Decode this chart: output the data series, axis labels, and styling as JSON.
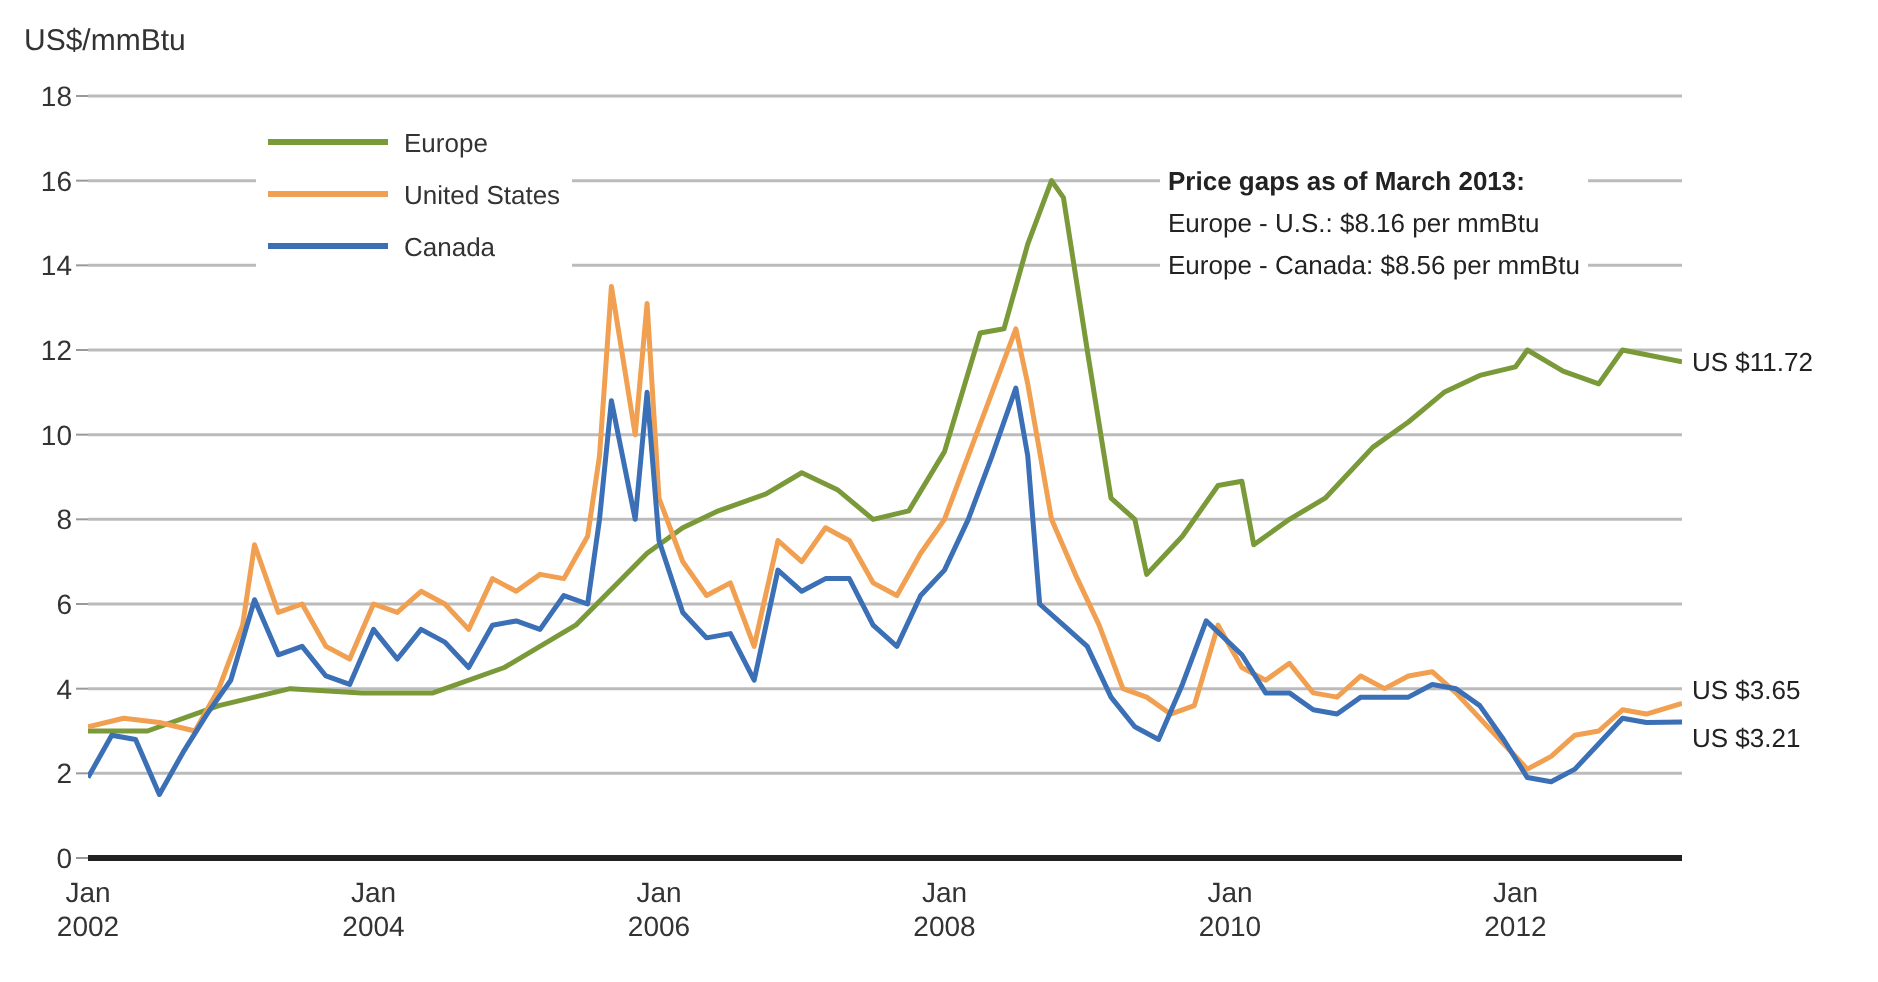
{
  "chart_data": {
    "type": "line",
    "ylabel": "US$/mmBtu",
    "xlim": [
      "2002-01",
      "2013-03"
    ],
    "xticks": [
      {
        "value": "2002-01",
        "label": "Jan\n2002"
      },
      {
        "value": "2004-01",
        "label": "Jan\n2004"
      },
      {
        "value": "2006-01",
        "label": "Jan\n2006"
      },
      {
        "value": "2008-01",
        "label": "Jan\n2008"
      },
      {
        "value": "2010-01",
        "label": "Jan\n2010"
      },
      {
        "value": "2012-01",
        "label": "Jan\n2012"
      }
    ],
    "ylim": [
      0,
      18
    ],
    "yticks": [
      0,
      2,
      4,
      6,
      8,
      10,
      12,
      14,
      16,
      18
    ],
    "grid": "y",
    "legend": "top left",
    "series": [
      {
        "name": "Europe",
        "color": "#7a9a3a",
        "x": [
          "2002-01",
          "2002-06",
          "2002-12",
          "2003-06",
          "2003-12",
          "2004-06",
          "2004-12",
          "2005-06",
          "2005-12",
          "2006-03",
          "2006-06",
          "2006-10",
          "2007-01",
          "2007-04",
          "2007-07",
          "2007-10",
          "2008-01",
          "2008-04",
          "2008-06",
          "2008-08",
          "2008-10",
          "2008-11",
          "2009-01",
          "2009-03",
          "2009-05",
          "2009-06",
          "2009-09",
          "2009-12",
          "2010-02",
          "2010-03",
          "2010-06",
          "2010-09",
          "2011-01",
          "2011-04",
          "2011-07",
          "2011-10",
          "2012-01",
          "2012-02",
          "2012-05",
          "2012-08",
          "2012-10",
          "2013-03"
        ],
        "values": [
          3.0,
          3.0,
          3.6,
          4.0,
          3.9,
          3.9,
          4.5,
          5.5,
          7.2,
          7.8,
          8.2,
          8.6,
          9.1,
          8.7,
          8.0,
          8.2,
          9.6,
          12.4,
          12.5,
          14.5,
          16.0,
          15.6,
          12.0,
          8.5,
          8.0,
          6.7,
          7.6,
          8.8,
          8.9,
          7.4,
          8.0,
          8.5,
          9.7,
          10.3,
          11.0,
          11.4,
          11.6,
          12.0,
          11.5,
          11.2,
          12.0,
          11.72
        ]
      },
      {
        "name": "United States",
        "color": "#f0a050",
        "x": [
          "2002-01",
          "2002-04",
          "2002-07",
          "2002-10",
          "2002-12",
          "2003-02",
          "2003-03",
          "2003-05",
          "2003-07",
          "2003-09",
          "2003-11",
          "2004-01",
          "2004-03",
          "2004-05",
          "2004-07",
          "2004-09",
          "2004-11",
          "2005-01",
          "2005-03",
          "2005-05",
          "2005-07",
          "2005-08",
          "2005-09",
          "2005-11",
          "2005-12",
          "2006-01",
          "2006-03",
          "2006-05",
          "2006-07",
          "2006-09",
          "2006-11",
          "2007-01",
          "2007-03",
          "2007-05",
          "2007-07",
          "2007-09",
          "2007-11",
          "2008-01",
          "2008-03",
          "2008-05",
          "2008-07",
          "2008-08",
          "2008-10",
          "2008-12",
          "2009-02",
          "2009-04",
          "2009-06",
          "2009-08",
          "2009-10",
          "2009-12",
          "2010-02",
          "2010-04",
          "2010-06",
          "2010-08",
          "2010-10",
          "2010-12",
          "2011-02",
          "2011-04",
          "2011-06",
          "2011-08",
          "2011-10",
          "2011-12",
          "2012-02",
          "2012-04",
          "2012-06",
          "2012-08",
          "2012-10",
          "2012-12",
          "2013-03"
        ],
        "values": [
          3.1,
          3.3,
          3.2,
          3.0,
          4.0,
          5.5,
          7.4,
          5.8,
          6.0,
          5.0,
          4.7,
          6.0,
          5.8,
          6.3,
          6.0,
          5.4,
          6.6,
          6.3,
          6.7,
          6.6,
          7.6,
          9.5,
          13.5,
          10.0,
          13.1,
          8.5,
          7.0,
          6.2,
          6.5,
          5.0,
          7.5,
          7.0,
          7.8,
          7.5,
          6.5,
          6.2,
          7.2,
          8.0,
          9.5,
          11.0,
          12.5,
          11.2,
          8.0,
          6.7,
          5.5,
          4.0,
          3.8,
          3.4,
          3.6,
          5.5,
          4.5,
          4.2,
          4.6,
          3.9,
          3.8,
          4.3,
          4.0,
          4.3,
          4.4,
          3.9,
          3.3,
          2.7,
          2.1,
          2.4,
          2.9,
          3.0,
          3.5,
          3.4,
          3.65
        ]
      },
      {
        "name": "Canada",
        "color": "#3b6fb6",
        "x": [
          "2002-01",
          "2002-03",
          "2002-05",
          "2002-07",
          "2002-09",
          "2002-11",
          "2003-01",
          "2003-03",
          "2003-05",
          "2003-07",
          "2003-09",
          "2003-11",
          "2004-01",
          "2004-03",
          "2004-05",
          "2004-07",
          "2004-09",
          "2004-11",
          "2005-01",
          "2005-03",
          "2005-05",
          "2005-07",
          "2005-08",
          "2005-09",
          "2005-11",
          "2005-12",
          "2006-01",
          "2006-03",
          "2006-05",
          "2006-07",
          "2006-09",
          "2006-11",
          "2007-01",
          "2007-03",
          "2007-05",
          "2007-07",
          "2007-09",
          "2007-11",
          "2008-01",
          "2008-03",
          "2008-05",
          "2008-07",
          "2008-08",
          "2008-09",
          "2008-11",
          "2009-01",
          "2009-03",
          "2009-05",
          "2009-07",
          "2009-09",
          "2009-11",
          "2010-02",
          "2010-04",
          "2010-06",
          "2010-08",
          "2010-10",
          "2010-12",
          "2011-02",
          "2011-04",
          "2011-06",
          "2011-08",
          "2011-10",
          "2011-12",
          "2012-02",
          "2012-04",
          "2012-06",
          "2012-08",
          "2012-10",
          "2012-12",
          "2013-03"
        ],
        "values": [
          1.9,
          2.9,
          2.8,
          1.5,
          2.5,
          3.4,
          4.2,
          6.1,
          4.8,
          5.0,
          4.3,
          4.1,
          5.4,
          4.7,
          5.4,
          5.1,
          4.5,
          5.5,
          5.6,
          5.4,
          6.2,
          6.0,
          8.0,
          10.8,
          8.0,
          11.0,
          7.5,
          5.8,
          5.2,
          5.3,
          4.2,
          6.8,
          6.3,
          6.6,
          6.6,
          5.5,
          5.0,
          6.2,
          6.8,
          8.0,
          9.5,
          11.1,
          9.5,
          6.0,
          5.5,
          5.0,
          3.8,
          3.1,
          2.8,
          4.1,
          5.6,
          4.8,
          3.9,
          3.9,
          3.5,
          3.4,
          3.8,
          3.8,
          3.8,
          4.1,
          4.0,
          3.6,
          2.8,
          1.9,
          1.8,
          2.1,
          2.7,
          3.3,
          3.2,
          3.21
        ]
      }
    ],
    "annotations": [
      "Price gaps as of March 2013:\nEurope - U.S.: $8.16 per mmBtu\nEurope - Canada: $8.56 per mmBtu",
      {
        "text": "US $11.72",
        "x": "2013-03",
        "y": 11.72
      },
      {
        "text": "US $3.65",
        "x": "2013-03",
        "y": 3.65
      },
      {
        "text": "US $3.21",
        "x": "2013-03",
        "y": 3.21
      }
    ]
  }
}
